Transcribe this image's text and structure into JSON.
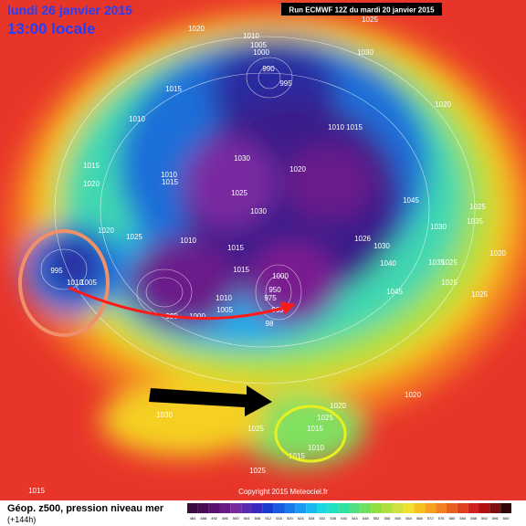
{
  "header": {
    "date": "lundi 26 janvier 2015",
    "time": "13:00 locale",
    "run": "Run ECMWF 12Z du mardi 20 janvier 2015"
  },
  "footer": {
    "title": "Géop. z500, pression niveau mer",
    "lead": "(+144h)",
    "copyright": "Copyright 2015 Meteociel.fr"
  },
  "pressure_labels": [
    "1020",
    "1010",
    "1005",
    "1000",
    "1025",
    "1030",
    "990",
    "995",
    "1015",
    "1010",
    "1015",
    "1020",
    "1010",
    "1015",
    "1030",
    "1025",
    "1030",
    "1020",
    "1010",
    "1015",
    "1020",
    "1045",
    "1030",
    "1025",
    "1035",
    "1020",
    "1025",
    "1010",
    "1015",
    "1015",
    "1026",
    "1030",
    "1040",
    "1035",
    "1025",
    "1045",
    "1025",
    "1020",
    "1025",
    "995",
    "1010",
    "1005",
    "1000",
    "950",
    "975",
    "965",
    "98",
    "1005",
    "1010",
    "1000",
    "990",
    "1020",
    "1020",
    "1025",
    "1015",
    "1010",
    "1015",
    "1030",
    "1025",
    "1025",
    "1015"
  ],
  "scale_labels": [
    "484",
    "488",
    "492",
    "496",
    "500",
    "504",
    "508",
    "512",
    "516",
    "520",
    "524",
    "528",
    "532",
    "536",
    "540",
    "544",
    "548",
    "552",
    "556",
    "560",
    "564",
    "568",
    "572",
    "576",
    "580",
    "584",
    "588",
    "592",
    "596",
    "600"
  ]
}
